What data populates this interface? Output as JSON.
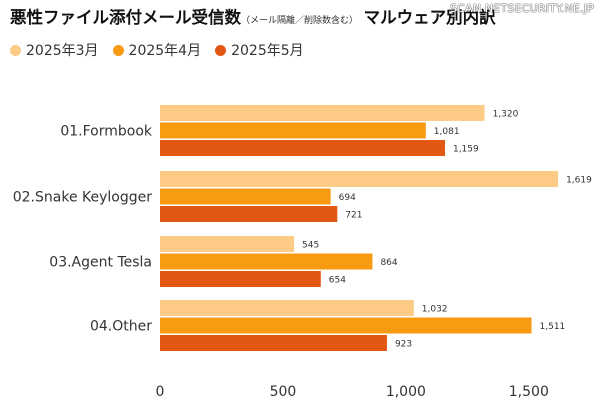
{
  "title": {
    "main": "悪性ファイル添付メール受信数",
    "note": "（メール隔離／削除数含む）",
    "tail": "マルウェア別内訳"
  },
  "watermark": "SCAN NETSECURITY.NE.JP",
  "colors": {
    "bg": "#ffffff",
    "tick": "#333333",
    "label": "#333333"
  },
  "chart_data": {
    "type": "bar",
    "orientation": "horizontal",
    "categories": [
      "01.Formbook",
      "02.Snake Keylogger",
      "03.Agent Tesla",
      "04.Other"
    ],
    "series": [
      {
        "name": "2025年3月",
        "color": "#FDCB86",
        "values": [
          1320,
          1619,
          545,
          1032
        ],
        "labels": [
          "1,320",
          "1,619",
          "545",
          "1,032"
        ]
      },
      {
        "name": "2025年4月",
        "color": "#F89A12",
        "values": [
          1081,
          694,
          864,
          1511
        ],
        "labels": [
          "1,081",
          "694",
          "864",
          "1,511"
        ]
      },
      {
        "name": "2025年5月",
        "color": "#E25712",
        "values": [
          1159,
          721,
          654,
          923
        ],
        "labels": [
          "1,159",
          "721",
          "654",
          "923"
        ]
      }
    ],
    "xlim": [
      0,
      1700
    ],
    "xticks": [
      0,
      500,
      1000,
      1500
    ],
    "xtick_labels": [
      "0",
      "500",
      "1,000",
      "1,500"
    ],
    "legend": "top-left",
    "grid": false
  }
}
